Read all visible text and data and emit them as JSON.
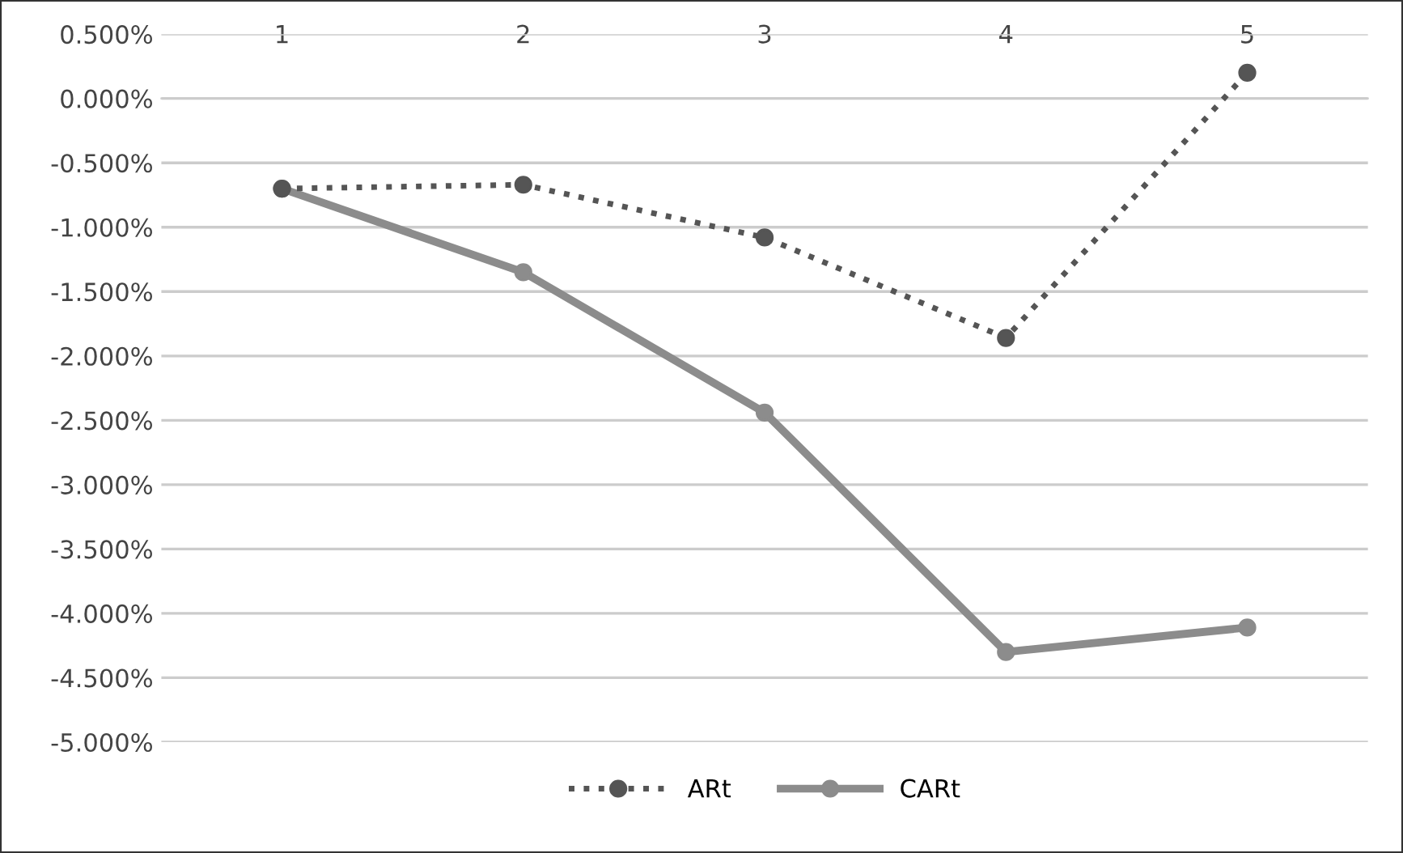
{
  "chart_data": {
    "type": "line",
    "categories": [
      "1",
      "2",
      "3",
      "4",
      "5"
    ],
    "series": [
      {
        "name": "ARt",
        "color": "#555555",
        "line_style": "dotted",
        "values": [
          -0.7,
          -0.67,
          -1.08,
          -1.86,
          0.2
        ]
      },
      {
        "name": "CARt",
        "color": "#8c8c8c",
        "line_style": "solid",
        "values": [
          -0.7,
          -1.35,
          -2.44,
          -4.3,
          -4.11
        ]
      }
    ],
    "ylim": [
      -5.0,
      0.5
    ],
    "yticks": [
      {
        "value": 0.5,
        "label": "0.500%"
      },
      {
        "value": 0,
        "label": "0.000%"
      },
      {
        "value": -0.5,
        "label": "-0.500%"
      },
      {
        "value": -1.0,
        "label": "-1.000%"
      },
      {
        "value": -1.5,
        "label": "-1.500%"
      },
      {
        "value": -2.0,
        "label": "-2.000%"
      },
      {
        "value": -2.5,
        "label": "-2.500%"
      },
      {
        "value": -3.0,
        "label": "-3.000%"
      },
      {
        "value": -3.5,
        "label": "-3.500%"
      },
      {
        "value": -4.0,
        "label": "-4.000%"
      },
      {
        "value": -4.5,
        "label": "-4.500%"
      },
      {
        "value": -5.0,
        "label": "-5.000%"
      }
    ],
    "grid": "y",
    "legend": "bottom",
    "marker": "circle"
  }
}
